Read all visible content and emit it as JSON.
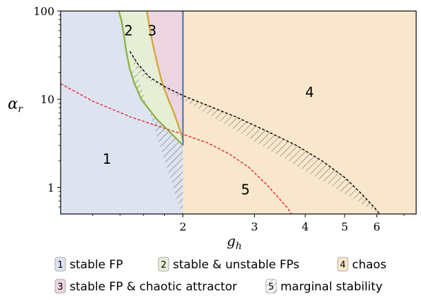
{
  "chart_data": {
    "type": "area",
    "title": "",
    "xlabel": "g",
    "xlabel_sub": "h",
    "ylabel": "α",
    "ylabel_sub": "r",
    "xscale": "log",
    "yscale": "log",
    "xlim": [
      1.0,
      7.5
    ],
    "ylim": [
      0.5,
      100
    ],
    "x_ticks": [
      2,
      3,
      4,
      5,
      6
    ],
    "y_ticks": [
      1,
      10,
      100
    ],
    "grid": false,
    "regions": [
      {
        "id": "1",
        "label": "1",
        "name": "stable FP",
        "color": "#dde3f0"
      },
      {
        "id": "2",
        "label": "2",
        "name": "stable & unstable FPs",
        "color": "#e6eed5"
      },
      {
        "id": "3",
        "label": "3",
        "name": "stable FP & chaotic attractor",
        "color": "#ecd5e0"
      },
      {
        "id": "4",
        "label": "4",
        "name": "chaos",
        "color": "#f9e7cd"
      },
      {
        "id": "5",
        "label": "5",
        "name": "marginal stability",
        "color": "hatched"
      }
    ],
    "series": [
      {
        "color": "#5a7fb5",
        "style": "solid",
        "x": [
          2,
          2
        ],
        "y": [
          3,
          100
        ]
      },
      {
        "color": "#8bb34a",
        "style": "solid",
        "x": [
          2.0,
          1.88,
          1.72,
          1.58,
          1.52,
          1.48,
          1.45,
          1.43,
          1.41,
          1.39
        ],
        "y": [
          3.0,
          4.0,
          6.0,
          10.0,
          15.0,
          22.0,
          35.0,
          55.0,
          80.0,
          100.0
        ]
      },
      {
        "color": "#d4a63a",
        "style": "solid",
        "x": [
          2.0,
          1.95,
          1.9,
          1.84,
          1.78,
          1.73,
          1.69,
          1.66,
          1.64,
          1.63
        ],
        "y": [
          3.5,
          5.0,
          7.0,
          10.0,
          15.0,
          25.0,
          40.0,
          60.0,
          85.0,
          100.0
        ]
      },
      {
        "color": "#000000",
        "style": "dashed",
        "x": [
          1.48,
          1.55,
          1.65,
          1.8,
          2.0,
          2.3,
          2.7,
          3.2,
          3.8,
          4.4,
          5.0,
          5.5,
          5.9,
          6.1
        ],
        "y": [
          35.0,
          25.0,
          18.0,
          14.0,
          11.0,
          8.5,
          6.3,
          4.4,
          3.0,
          2.0,
          1.3,
          0.85,
          0.6,
          0.5
        ]
      },
      {
        "color": "#e3222a",
        "style": "dashed",
        "x": [
          1.0,
          1.2,
          1.5,
          1.8,
          2.0,
          2.3,
          2.6,
          2.9,
          3.2,
          3.45,
          3.6,
          3.7
        ],
        "y": [
          15.0,
          9.5,
          6.2,
          4.7,
          4.0,
          3.2,
          2.4,
          1.7,
          1.1,
          0.75,
          0.6,
          0.5
        ]
      }
    ],
    "colors": {
      "region_1": "#dde3f0",
      "region_2": "#e6eed5",
      "region_3": "#ecd5e0",
      "region_4": "#f9e7cd"
    }
  }
}
